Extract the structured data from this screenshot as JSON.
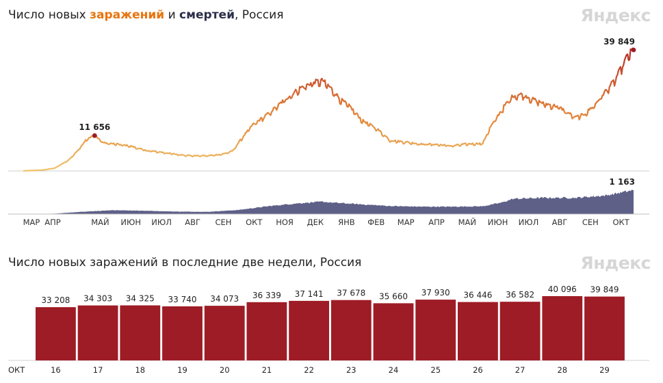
{
  "chart_data": [
    {
      "type": "line",
      "title_parts": [
        "Число новых ",
        "заражений",
        " и ",
        "смертей",
        ", Россия"
      ],
      "brand": "Яндекс",
      "months": [
        "МАР",
        "АПР",
        "МАЙ",
        "ИЮН",
        "ИЮЛ",
        "АВГ",
        "СЕН",
        "ОКТ",
        "НОЯ",
        "ДЕК",
        "ЯНВ",
        "ФЕВ",
        "МАР",
        "АПР",
        "МАЙ",
        "ИЮН",
        "ИЮЛ",
        "АВГ",
        "СЕН",
        "ОКТ"
      ],
      "series": [
        {
          "name": "заражений",
          "x": [
            "2020-03-01",
            "2020-03-20",
            "2020-04-01",
            "2020-04-15",
            "2020-04-25",
            "2020-05-03",
            "2020-05-11",
            "2020-05-20",
            "2020-06-01",
            "2020-06-15",
            "2020-07-01",
            "2020-07-15",
            "2020-08-01",
            "2020-08-15",
            "2020-09-01",
            "2020-09-15",
            "2020-09-25",
            "2020-10-05",
            "2020-10-15",
            "2020-11-01",
            "2020-11-15",
            "2020-12-01",
            "2020-12-15",
            "2020-12-24",
            "2021-01-01",
            "2021-01-10",
            "2021-01-20",
            "2021-02-01",
            "2021-02-15",
            "2021-03-01",
            "2021-03-15",
            "2021-04-01",
            "2021-04-15",
            "2021-05-01",
            "2021-05-15",
            "2021-06-01",
            "2021-06-08",
            "2021-06-15",
            "2021-06-22",
            "2021-07-01",
            "2021-07-10",
            "2021-07-20",
            "2021-08-01",
            "2021-08-15",
            "2021-09-01",
            "2021-09-10",
            "2021-09-20",
            "2021-10-01",
            "2021-10-10",
            "2021-10-16",
            "2021-10-23",
            "2021-10-29"
          ],
          "y": [
            40,
            300,
            900,
            3500,
            7000,
            10500,
            11656,
            9200,
            8800,
            8200,
            6700,
            6200,
            5400,
            5000,
            5000,
            5500,
            6500,
            11000,
            15000,
            19000,
            23000,
            27000,
            29000,
            29500,
            27000,
            23500,
            21000,
            16500,
            14000,
            10000,
            9500,
            8800,
            8700,
            8200,
            8800,
            9000,
            14000,
            17500,
            21000,
            24500,
            25000,
            23500,
            22000,
            21000,
            17500,
            18500,
            21500,
            26000,
            29500,
            33208,
            37678,
            39849
          ]
        },
        {
          "name": "смертей",
          "x": [
            "2020-03-01",
            "2020-04-01",
            "2020-05-01",
            "2020-06-01",
            "2020-07-01",
            "2020-08-01",
            "2020-09-01",
            "2020-10-01",
            "2020-11-01",
            "2020-12-01",
            "2020-12-24",
            "2021-01-01",
            "2021-02-01",
            "2021-03-01",
            "2021-04-01",
            "2021-05-01",
            "2021-06-01",
            "2021-06-20",
            "2021-07-01",
            "2021-08-01",
            "2021-09-01",
            "2021-10-01",
            "2021-10-29"
          ],
          "y": [
            0,
            20,
            120,
            190,
            160,
            120,
            110,
            200,
            390,
            530,
            600,
            560,
            470,
            390,
            360,
            360,
            380,
            560,
            740,
            790,
            790,
            900,
            1163
          ]
        }
      ],
      "annotations": [
        {
          "date": "2020-05-11",
          "value": 11656,
          "label": "11 656"
        },
        {
          "date": "2021-10-29",
          "value": 39849,
          "label": "39 849"
        },
        {
          "date": "2021-10-29",
          "value": 1163,
          "label": "1 163"
        }
      ],
      "colors": {
        "low": "#f0c266",
        "mid": "#e07d35",
        "high": "#b42a25",
        "deaths": "#5f6088",
        "dot": "#9e1c25"
      }
    },
    {
      "type": "bar",
      "title": "Число новых заражений в последние две недели, Россия",
      "brand": "Яндекс",
      "month_label": "ОКТ",
      "categories": [
        "16",
        "17",
        "18",
        "19",
        "20",
        "21",
        "22",
        "23",
        "24",
        "25",
        "26",
        "27",
        "28",
        "29"
      ],
      "values": [
        33208,
        34303,
        34325,
        33740,
        34073,
        36339,
        37141,
        37678,
        35660,
        37930,
        36446,
        36582,
        40096,
        39849
      ],
      "value_labels": [
        "33 208",
        "34 303",
        "34 325",
        "33 740",
        "34 073",
        "36 339",
        "37 141",
        "37 678",
        "35 660",
        "37 930",
        "36 446",
        "36 582",
        "40 096",
        "39 849"
      ],
      "weekend": [
        true,
        true,
        false,
        false,
        false,
        false,
        false,
        true,
        true,
        false,
        false,
        false,
        false,
        false
      ],
      "ylim": [
        0,
        40096
      ],
      "colors": {
        "bar": "#9e1c25",
        "weekend_label": "#d43b2b"
      }
    }
  ]
}
